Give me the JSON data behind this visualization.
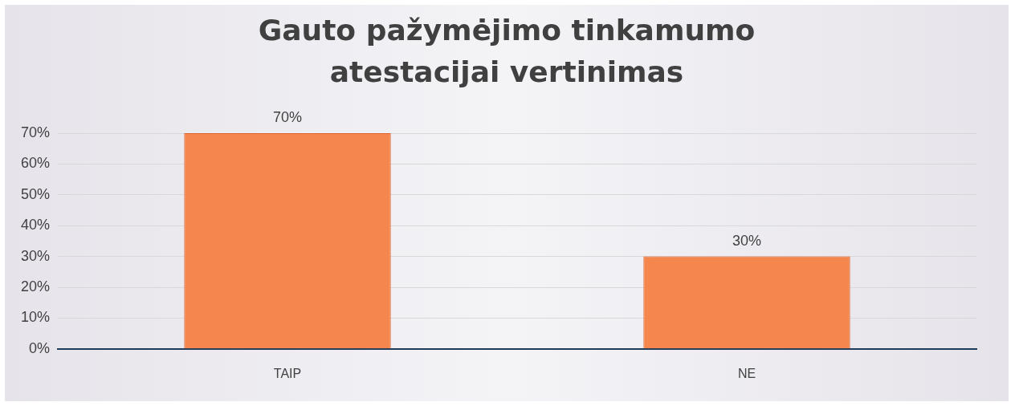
{
  "chart_data": {
    "type": "bar",
    "title": "Gauto pažymėjimo tinkamumo atestacijai vertinimas",
    "categories": [
      "TAIP",
      "NE"
    ],
    "values": [
      70,
      30
    ],
    "value_labels": [
      "70%",
      "30%"
    ],
    "color": "#f4864e",
    "ylim": [
      0,
      70
    ],
    "yticks": [
      {
        "value": 0,
        "label": "0%"
      },
      {
        "value": 10,
        "label": "10%"
      },
      {
        "value": 20,
        "label": "20%"
      },
      {
        "value": 30,
        "label": "30%"
      },
      {
        "value": 40,
        "label": "40%"
      },
      {
        "value": 50,
        "label": "50%"
      },
      {
        "value": 60,
        "label": "60%"
      },
      {
        "value": 70,
        "label": "70%"
      }
    ],
    "grid": "y",
    "legend": false
  }
}
